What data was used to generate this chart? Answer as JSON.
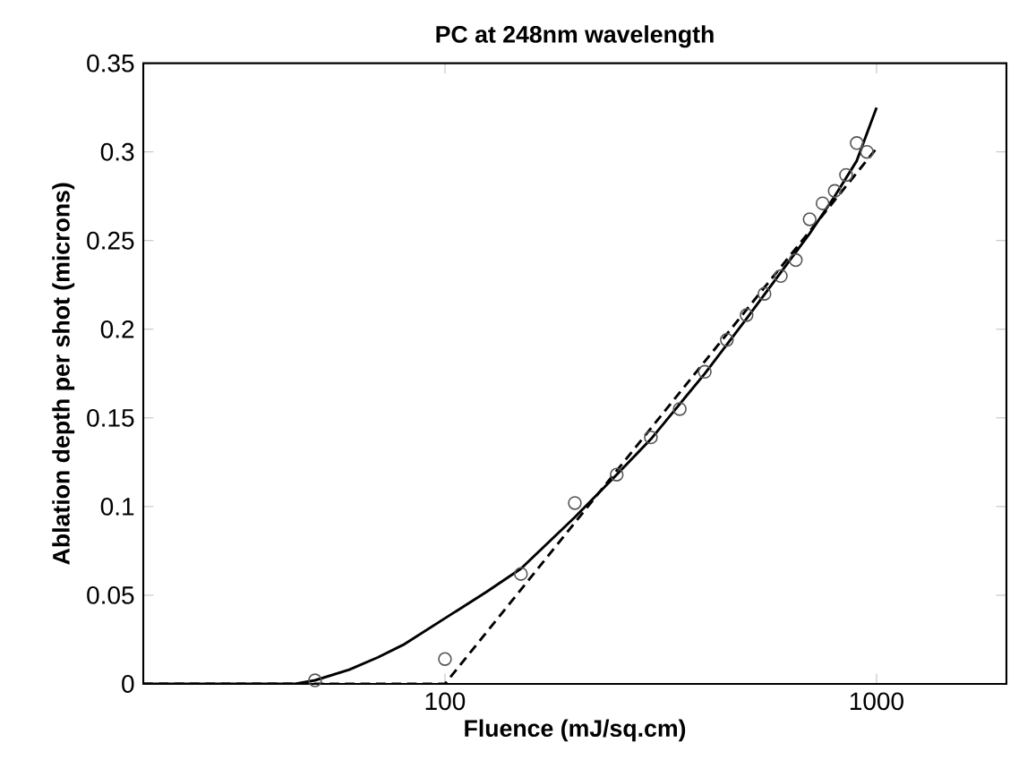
{
  "chart_data": {
    "type": "line",
    "title": "PC at 248nm wavelength",
    "xlabel": "Fluence (mJ/sq.cm)",
    "ylabel": "Ablation depth per shot (microns)",
    "log": "x",
    "xlim": [
      20,
      2000
    ],
    "xticks": [
      100,
      1000
    ],
    "ylim": [
      0,
      0.35
    ],
    "yticks": [
      0,
      0.05,
      0.1,
      0.15,
      0.2,
      0.25,
      0.3,
      0.35
    ],
    "grid": false,
    "series": [
      {
        "type": "scatter",
        "marker": "circle",
        "color": "#555555",
        "x": [
          50,
          100,
          150,
          200,
          250,
          300,
          350,
          400,
          450,
          500,
          550,
          600,
          650,
          700,
          750,
          800,
          850,
          900,
          950
        ],
        "values": [
          0.002,
          0.014,
          0.062,
          0.102,
          0.118,
          0.139,
          0.155,
          0.176,
          0.194,
          0.208,
          0.22,
          0.23,
          0.239,
          0.262,
          0.271,
          0.278,
          0.287,
          0.305,
          0.3
        ]
      },
      {
        "line_style": "solid",
        "color": "#000000",
        "x": [
          20,
          45,
          50,
          60,
          70,
          80,
          100,
          125,
          150,
          200,
          250,
          300,
          400,
          500,
          600,
          700,
          800,
          900,
          1000
        ],
        "values": [
          0,
          0,
          0.002,
          0.008,
          0.015,
          0.022,
          0.037,
          0.052,
          0.065,
          0.094,
          0.118,
          0.138,
          0.175,
          0.206,
          0.232,
          0.254,
          0.275,
          0.295,
          0.325
        ]
      },
      {
        "line_style": "dashed",
        "color": "#000000",
        "x": [
          20,
          100,
          1000
        ],
        "values": [
          0,
          0,
          0.302
        ]
      }
    ]
  }
}
